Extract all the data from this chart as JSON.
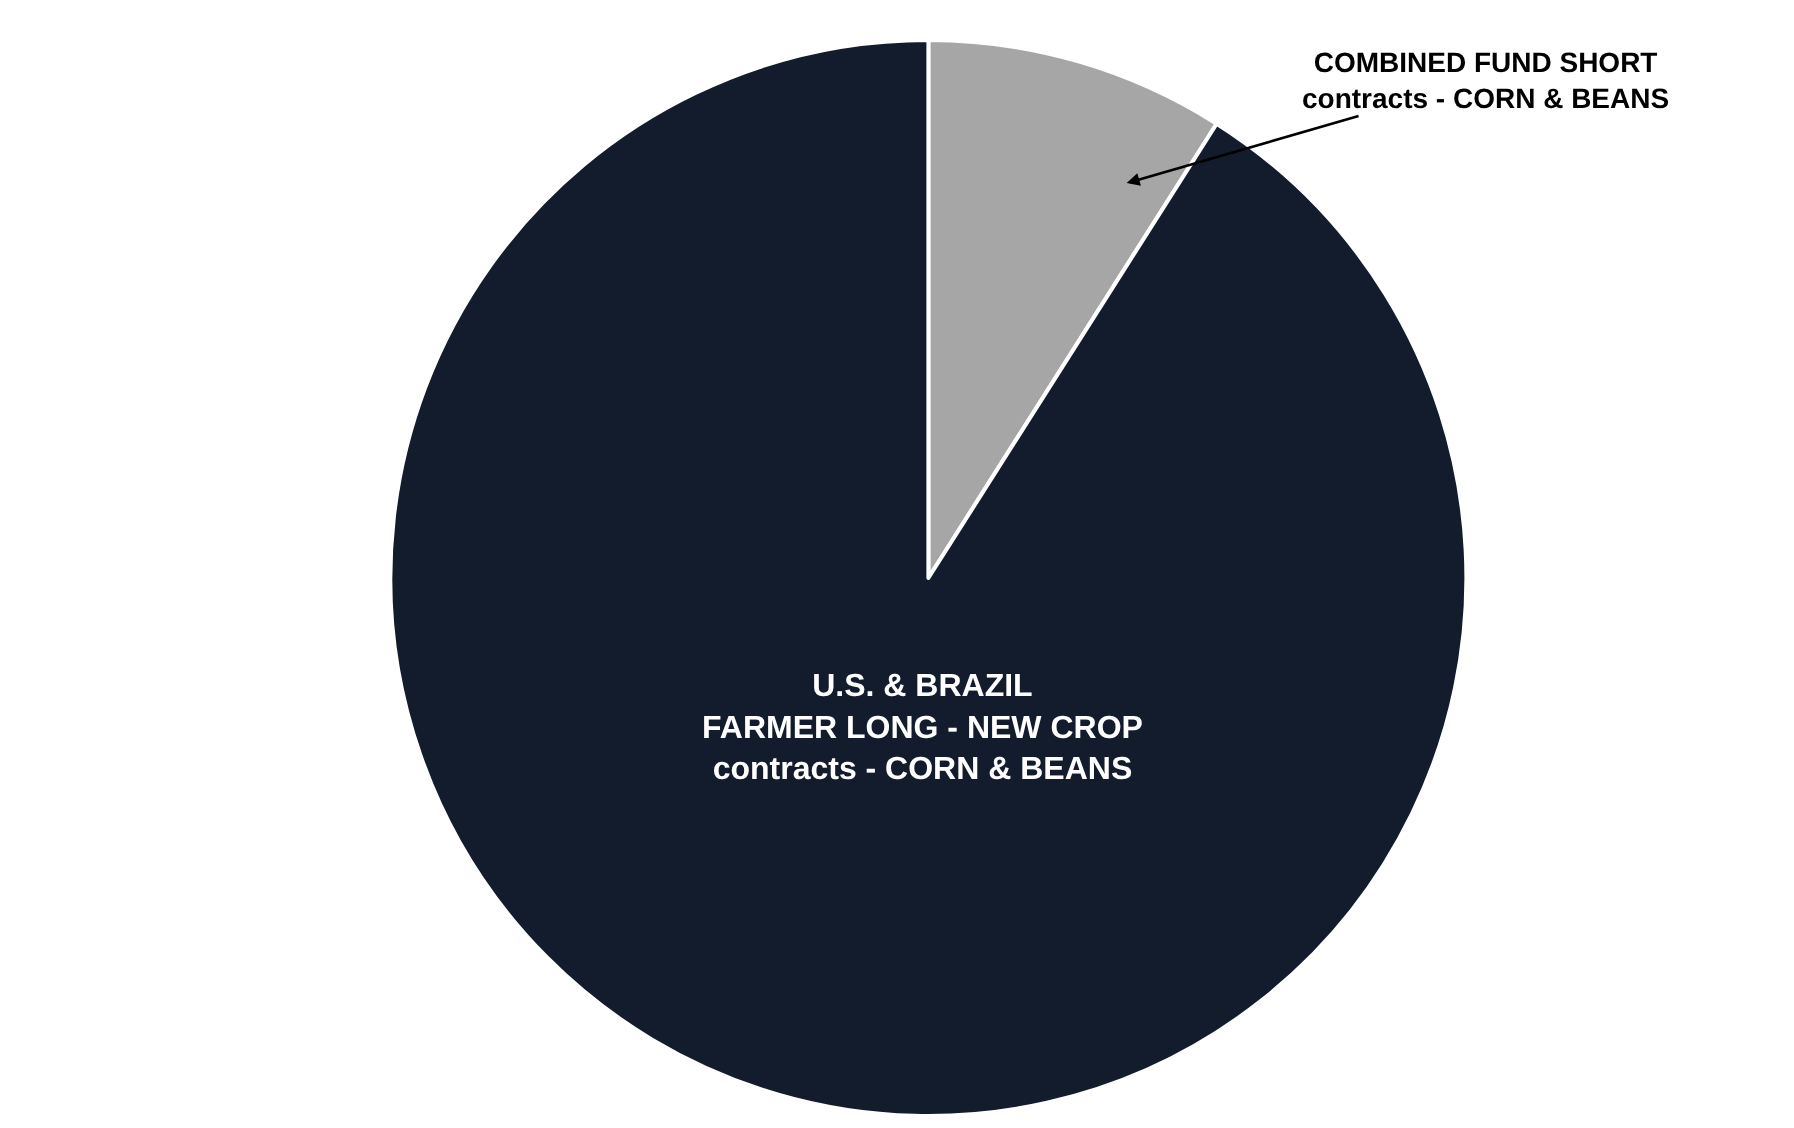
{
  "chart_data": {
    "type": "pie",
    "categories": [
      "COMBINED FUND SHORT\ncontracts - CORN & BEANS",
      "U.S. & BRAZIL\nFARMER LONG - NEW CROP\ncontracts - CORN & BEANS"
    ],
    "values": [
      9,
      91
    ],
    "colors": [
      "#a6a6a6",
      "#121c2c"
    ],
    "legend": false
  }
}
